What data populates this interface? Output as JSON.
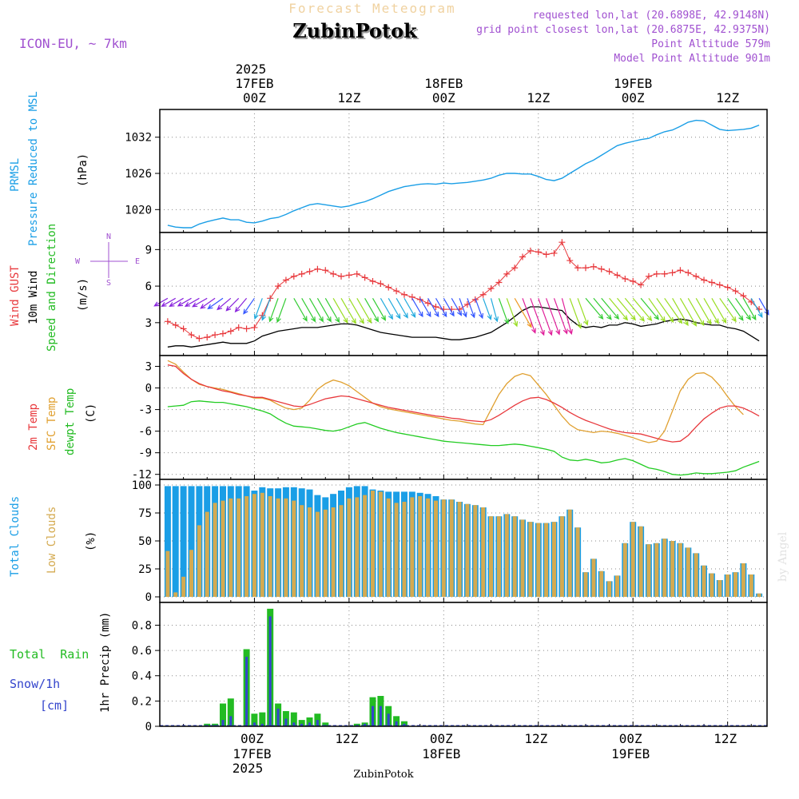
{
  "header": {
    "title": "Forecast Meteogram",
    "location": "ZubinPotok",
    "model": "ICON-EU, ~ 7km",
    "requested": "requested lon,lat (20.6898E, 42.9148N)",
    "closest": "grid point closest lon,lat (20.6875E, 42.9375N)",
    "altitude": "Point Altitude 579m",
    "model_altitude": "Model Point Altitude 901m",
    "footer_location": "ZubinPotok",
    "credit": "by Angel"
  },
  "colors": {
    "pressure": "#1a9ee6",
    "gust": "#e8383c",
    "wind": "#000000",
    "temp2m": "#e8383c",
    "sfc": "#e0a030",
    "dewpt": "#22cc22",
    "total_clouds": "#1a9ee6",
    "low_clouds": "#d4aa50",
    "rain": "#22bb22",
    "snow": "#3344cc",
    "label_purple": "#a050d0"
  },
  "time_axis": {
    "top_year": "2025",
    "bottom_year": "2025",
    "ticks": [
      {
        "h": 0,
        "label": "00Z",
        "date": "17FEB"
      },
      {
        "h": 12,
        "label": "12Z",
        "date": ""
      },
      {
        "h": 24,
        "label": "00Z",
        "date": "18FEB"
      },
      {
        "h": 36,
        "label": "12Z",
        "date": ""
      },
      {
        "h": 48,
        "label": "00Z",
        "date": "19FEB"
      },
      {
        "h": 60,
        "label": "12Z",
        "date": ""
      }
    ]
  },
  "compass": {
    "n": "N",
    "s": "S",
    "e": "E",
    "w": "W"
  },
  "chart_data": [
    {
      "type": "line",
      "name": "pressure",
      "ylabels": [
        "PRMSL",
        "Pressure Reduced to MSL"
      ],
      "yunit": "(hPa)",
      "yticks": [
        1020,
        1026,
        1032
      ],
      "ylim": [
        1016.2,
        1036.6
      ],
      "x": [
        -11,
        -10,
        -9,
        -8,
        -7,
        -6,
        -5,
        -4,
        -3,
        -2,
        -1,
        0,
        1,
        2,
        3,
        4,
        5,
        6,
        7,
        8,
        9,
        10,
        11,
        12,
        13,
        14,
        15,
        16,
        17,
        18,
        19,
        20,
        21,
        22,
        23,
        24,
        25,
        26,
        27,
        28,
        29,
        30,
        31,
        32,
        33,
        34,
        35,
        36,
        37,
        38,
        39,
        40,
        41,
        42,
        43,
        44,
        45,
        46,
        47,
        48,
        49,
        50,
        51,
        52,
        53,
        54,
        55,
        56,
        57,
        58,
        59,
        60,
        61,
        62,
        63,
        64
      ],
      "values": [
        1017.4,
        1017.1,
        1017.0,
        1017.0,
        1017.6,
        1018.0,
        1018.3,
        1018.6,
        1018.3,
        1018.3,
        1017.9,
        1017.8,
        1018.1,
        1018.5,
        1018.7,
        1019.2,
        1019.8,
        1020.3,
        1020.8,
        1021.0,
        1020.8,
        1020.6,
        1020.4,
        1020.6,
        1021.0,
        1021.3,
        1021.8,
        1022.4,
        1023.0,
        1023.4,
        1023.8,
        1024.0,
        1024.2,
        1024.3,
        1024.2,
        1024.4,
        1024.3,
        1024.4,
        1024.5,
        1024.7,
        1024.9,
        1025.2,
        1025.7,
        1026.0,
        1026.0,
        1025.9,
        1025.9,
        1025.5,
        1025.0,
        1024.8,
        1025.2,
        1026.0,
        1026.8,
        1027.6,
        1028.2,
        1029.0,
        1029.8,
        1030.6,
        1031.0,
        1031.3,
        1031.6,
        1031.8,
        1032.4,
        1032.9,
        1033.2,
        1033.8,
        1034.5,
        1034.8,
        1034.7,
        1034.0,
        1033.3,
        1033.1,
        1033.2,
        1033.3,
        1033.5,
        1034.0
      ]
    },
    {
      "type": "line",
      "name": "wind",
      "ylabels": [
        "Wind GUST",
        "10m Wind",
        "Speed and Direction"
      ],
      "yunit": "(m/s)",
      "yticks": [
        3,
        6,
        9
      ],
      "ylim": [
        0.3,
        10.4
      ],
      "x": [
        -11,
        -10,
        -9,
        -8,
        -7,
        -6,
        -5,
        -4,
        -3,
        -2,
        -1,
        0,
        1,
        2,
        3,
        4,
        5,
        6,
        7,
        8,
        9,
        10,
        11,
        12,
        13,
        14,
        15,
        16,
        17,
        18,
        19,
        20,
        21,
        22,
        23,
        24,
        25,
        26,
        27,
        28,
        29,
        30,
        31,
        32,
        33,
        34,
        35,
        36,
        37,
        38,
        39,
        40,
        41,
        42,
        43,
        44,
        45,
        46,
        47,
        48,
        49,
        50,
        51,
        52,
        53,
        54,
        55,
        56,
        57,
        58,
        59,
        60,
        61,
        62,
        63,
        64
      ],
      "gust": [
        3.1,
        2.8,
        2.5,
        2.0,
        1.7,
        1.8,
        2.0,
        2.1,
        2.3,
        2.6,
        2.5,
        2.6,
        3.6,
        5.0,
        6.0,
        6.5,
        6.8,
        7.0,
        7.2,
        7.4,
        7.3,
        7.0,
        6.8,
        6.9,
        7.0,
        6.7,
        6.4,
        6.2,
        5.9,
        5.6,
        5.3,
        5.1,
        4.9,
        4.6,
        4.3,
        4.1,
        4.1,
        4.1,
        4.5,
        4.9,
        5.3,
        5.8,
        6.3,
        7.0,
        7.5,
        8.4,
        8.9,
        8.8,
        8.6,
        8.7,
        9.6,
        8.1,
        7.5,
        7.5,
        7.6,
        7.4,
        7.2,
        6.9,
        6.6,
        6.4,
        6.1,
        6.8,
        7.0,
        7.0,
        7.1,
        7.3,
        7.1,
        6.8,
        6.5,
        6.3,
        6.1,
        5.9,
        5.6,
        5.2,
        4.7,
        4.1
      ],
      "speed": [
        1.0,
        1.1,
        1.1,
        1.0,
        1.1,
        1.2,
        1.3,
        1.4,
        1.3,
        1.3,
        1.3,
        1.5,
        1.9,
        2.1,
        2.3,
        2.4,
        2.5,
        2.6,
        2.6,
        2.6,
        2.7,
        2.8,
        2.9,
        2.9,
        2.8,
        2.6,
        2.4,
        2.2,
        2.1,
        2.0,
        1.9,
        1.8,
        1.8,
        1.8,
        1.8,
        1.7,
        1.6,
        1.6,
        1.7,
        1.8,
        2.0,
        2.2,
        2.6,
        3.0,
        3.5,
        4.0,
        4.3,
        4.3,
        4.2,
        4.1,
        4.0,
        3.3,
        2.8,
        2.6,
        2.7,
        2.6,
        2.8,
        2.8,
        3.0,
        2.9,
        2.7,
        2.8,
        2.9,
        3.1,
        3.2,
        3.3,
        3.2,
        3.0,
        2.9,
        2.8,
        2.8,
        2.6,
        2.5,
        2.3,
        1.9,
        1.5
      ],
      "direction": [
        60,
        60,
        60,
        60,
        60,
        60,
        55,
        55,
        50,
        45,
        40,
        35,
        20,
        20,
        20,
        20,
        330,
        330,
        330,
        330,
        330,
        330,
        330,
        330,
        330,
        330,
        330,
        330,
        330,
        330,
        330,
        330,
        330,
        330,
        330,
        330,
        330,
        340,
        340,
        340,
        340,
        345,
        340,
        340,
        330,
        340,
        340,
        340,
        340,
        340,
        345,
        340,
        340,
        320,
        320,
        320,
        320,
        320,
        320,
        320,
        320,
        325,
        325,
        325,
        330,
        330,
        330,
        330,
        330,
        330,
        325,
        325,
        325,
        330,
        330,
        330
      ]
    },
    {
      "type": "line",
      "name": "temperature",
      "ylabels": [
        "2m Temp",
        "SFC Temp",
        "dewpt Temp"
      ],
      "yunit": "(C)",
      "yticks": [
        3,
        0,
        -3,
        -6,
        -9,
        -12
      ],
      "ylim": [
        -12.7,
        4.5
      ],
      "x": [
        -11,
        -10,
        -9,
        -8,
        -7,
        -6,
        -5,
        -4,
        -3,
        -2,
        -1,
        0,
        1,
        2,
        3,
        4,
        5,
        6,
        7,
        8,
        9,
        10,
        11,
        12,
        13,
        14,
        15,
        16,
        17,
        18,
        19,
        20,
        21,
        22,
        23,
        24,
        25,
        26,
        27,
        28,
        29,
        30,
        31,
        32,
        33,
        34,
        35,
        36,
        37,
        38,
        39,
        40,
        41,
        42,
        43,
        44,
        45,
        46,
        47,
        48,
        49,
        50,
        51,
        52,
        53,
        54,
        55,
        56,
        57,
        58,
        59,
        60,
        61,
        62,
        63,
        64
      ],
      "temp2m": [
        3.2,
        3.0,
        2.0,
        1.2,
        0.6,
        0.2,
        -0.1,
        -0.4,
        -0.6,
        -0.9,
        -1.1,
        -1.3,
        -1.3,
        -1.6,
        -1.9,
        -2.2,
        -2.5,
        -2.6,
        -2.3,
        -1.9,
        -1.5,
        -1.3,
        -1.1,
        -1.2,
        -1.5,
        -1.8,
        -2.1,
        -2.4,
        -2.7,
        -2.9,
        -3.1,
        -3.3,
        -3.5,
        -3.7,
        -3.9,
        -4.0,
        -4.2,
        -4.3,
        -4.5,
        -4.6,
        -4.7,
        -4.4,
        -3.8,
        -3.1,
        -2.4,
        -1.8,
        -1.4,
        -1.3,
        -1.6,
        -2.1,
        -2.7,
        -3.4,
        -4.0,
        -4.5,
        -4.9,
        -5.3,
        -5.7,
        -6.0,
        -6.2,
        -6.3,
        -6.4,
        -6.7,
        -7.0,
        -7.3,
        -7.5,
        -7.4,
        -6.6,
        -5.4,
        -4.3,
        -3.5,
        -2.8,
        -2.5,
        -2.5,
        -2.8,
        -3.3,
        -3.9
      ],
      "sfc": [
        3.8,
        3.3,
        2.2,
        1.2,
        0.5,
        0.2,
        0.0,
        -0.2,
        -0.5,
        -0.8,
        -1.1,
        -1.4,
        -1.4,
        -1.7,
        -2.3,
        -2.8,
        -3.0,
        -2.8,
        -1.7,
        -0.2,
        0.6,
        1.1,
        0.8,
        0.3,
        -0.5,
        -1.3,
        -2.1,
        -2.6,
        -2.9,
        -3.1,
        -3.3,
        -3.5,
        -3.7,
        -3.9,
        -4.1,
        -4.3,
        -4.5,
        -4.6,
        -4.8,
        -5.0,
        -5.1,
        -3.0,
        -0.9,
        0.6,
        1.6,
        2.0,
        1.7,
        0.4,
        -0.9,
        -2.4,
        -3.9,
        -5.1,
        -5.8,
        -6.0,
        -6.2,
        -6.0,
        -6.1,
        -6.3,
        -6.6,
        -6.9,
        -7.3,
        -7.6,
        -7.4,
        -6.0,
        -3.2,
        -0.4,
        1.2,
        2.0,
        2.1,
        1.5,
        0.3,
        -1.2,
        -2.6,
        -3.7
      ],
      "dewpt": [
        -2.6,
        -2.5,
        -2.4,
        -1.9,
        -1.8,
        -1.9,
        -2.0,
        -2.0,
        -2.2,
        -2.4,
        -2.6,
        -2.9,
        -3.2,
        -3.6,
        -4.3,
        -4.9,
        -5.3,
        -5.4,
        -5.5,
        -5.7,
        -5.9,
        -6.0,
        -5.8,
        -5.4,
        -5.0,
        -4.8,
        -5.2,
        -5.6,
        -5.9,
        -6.2,
        -6.4,
        -6.6,
        -6.8,
        -7.0,
        -7.2,
        -7.4,
        -7.5,
        -7.6,
        -7.7,
        -7.8,
        -7.9,
        -8.0,
        -8.0,
        -7.9,
        -7.8,
        -7.9,
        -8.1,
        -8.3,
        -8.5,
        -8.8,
        -9.6,
        -10.0,
        -10.1,
        -9.9,
        -10.1,
        -10.4,
        -10.3,
        -10.0,
        -9.8,
        -10.1,
        -10.6,
        -11.1,
        -11.3,
        -11.6,
        -12.0,
        -12.1,
        -12.0,
        -11.8,
        -11.9,
        -11.9,
        -11.8,
        -11.7,
        -11.5,
        -11.0,
        -10.6,
        -10.2
      ]
    },
    {
      "type": "bar",
      "name": "clouds",
      "ylabels": [
        "Total Clouds",
        "Low Clouds"
      ],
      "yunit": "(%)",
      "yticks": [
        0,
        25,
        50,
        75,
        100
      ],
      "ylim": [
        -5,
        105
      ],
      "x": [
        -11,
        -10,
        -9,
        -8,
        -7,
        -6,
        -5,
        -4,
        -3,
        -2,
        -1,
        0,
        1,
        2,
        3,
        4,
        5,
        6,
        7,
        8,
        9,
        10,
        11,
        12,
        13,
        14,
        15,
        16,
        17,
        18,
        19,
        20,
        21,
        22,
        23,
        24,
        25,
        26,
        27,
        28,
        29,
        30,
        31,
        32,
        33,
        34,
        35,
        36,
        37,
        38,
        39,
        40,
        41,
        42,
        43,
        44,
        45,
        46,
        47,
        48,
        49,
        50,
        51,
        52,
        53,
        54,
        55,
        56,
        57,
        58,
        59,
        60,
        61,
        62,
        63,
        64
      ],
      "total": [
        99,
        99,
        99,
        99,
        99,
        99,
        99,
        99,
        99,
        99,
        99,
        95,
        98,
        97,
        97,
        98,
        98,
        97,
        96,
        91,
        89,
        92,
        95,
        98,
        99,
        99,
        96,
        95,
        94,
        94,
        94,
        94,
        93,
        92,
        90,
        87,
        87,
        85,
        83,
        82,
        80,
        72,
        72,
        74,
        72,
        69,
        67,
        66,
        66,
        67,
        72,
        78,
        62,
        22,
        34,
        23,
        14,
        19,
        48,
        67,
        63,
        47,
        48,
        52,
        50,
        48,
        44,
        39,
        28,
        21,
        15,
        20,
        22,
        30,
        20,
        3
      ],
      "low": [
        41,
        4,
        18,
        42,
        64,
        76,
        84,
        86,
        88,
        88,
        90,
        92,
        93,
        90,
        88,
        88,
        86,
        82,
        80,
        76,
        78,
        80,
        82,
        88,
        89,
        91,
        95,
        94,
        88,
        84,
        85,
        89,
        90,
        88,
        86,
        87,
        87,
        85,
        83,
        82,
        80,
        72,
        72,
        74,
        72,
        69,
        67,
        66,
        66,
        67,
        72,
        78,
        62,
        22,
        34,
        23,
        14,
        19,
        48,
        67,
        63,
        47,
        48,
        52,
        50,
        48,
        44,
        39,
        28,
        21,
        15,
        20,
        22,
        30,
        20,
        3
      ]
    },
    {
      "type": "bar",
      "name": "precipitation",
      "ylabel": "1hr Precip (mm)",
      "left_labels": [
        "Total  Rain",
        "Snow/1h",
        "[cm]"
      ],
      "yticks": [
        0,
        0.2,
        0.4,
        0.6,
        0.8
      ],
      "ylim": [
        0,
        0.98
      ],
      "x": [
        -11,
        -10,
        -9,
        -8,
        -7,
        -6,
        -5,
        -4,
        -3,
        -2,
        -1,
        0,
        1,
        2,
        3,
        4,
        5,
        6,
        7,
        8,
        9,
        10,
        11,
        12,
        13,
        14,
        15,
        16,
        17,
        18,
        19,
        20,
        21,
        22,
        23,
        24,
        25,
        26,
        27,
        28,
        29,
        30,
        31,
        32,
        33,
        34,
        35,
        36,
        37,
        38,
        39,
        40,
        41,
        42,
        43,
        44,
        45,
        46,
        47,
        48,
        49,
        50,
        51,
        52,
        53,
        54,
        55,
        56,
        57,
        58,
        59,
        60,
        61,
        62,
        63,
        64
      ],
      "total": [
        0,
        0,
        0,
        0,
        0,
        0.02,
        0.02,
        0.18,
        0.22,
        0,
        0.61,
        0.1,
        0.11,
        0.93,
        0.18,
        0.12,
        0.11,
        0.05,
        0.07,
        0.1,
        0.03,
        0,
        0,
        0,
        0.02,
        0.03,
        0.23,
        0.24,
        0.16,
        0.08,
        0.04,
        0,
        0,
        0,
        0,
        0,
        0,
        0,
        0,
        0,
        0,
        0,
        0,
        0,
        0,
        0,
        0,
        0,
        0,
        0,
        0,
        0,
        0,
        0,
        0,
        0,
        0,
        0,
        0,
        0,
        0,
        0,
        0,
        0,
        0,
        0,
        0,
        0,
        0,
        0,
        0,
        0,
        0,
        0,
        0,
        0
      ],
      "snow": [
        0,
        0,
        0,
        0,
        0,
        0.01,
        0.01,
        0.05,
        0.08,
        0,
        0.55,
        0.03,
        0.02,
        0.87,
        0.14,
        0.06,
        0.03,
        0.02,
        0.03,
        0.05,
        0.01,
        0,
        0,
        0,
        0.01,
        0.02,
        0.16,
        0.16,
        0.1,
        0.04,
        0.02,
        0,
        0,
        0,
        0,
        0,
        0,
        0,
        0,
        0,
        0,
        0,
        0,
        0,
        0,
        0,
        0,
        0,
        0,
        0,
        0,
        0,
        0,
        0,
        0,
        0,
        0,
        0,
        0,
        0,
        0,
        0,
        0,
        0,
        0,
        0,
        0,
        0,
        0,
        0,
        0,
        0,
        0,
        0,
        0,
        0
      ]
    }
  ]
}
